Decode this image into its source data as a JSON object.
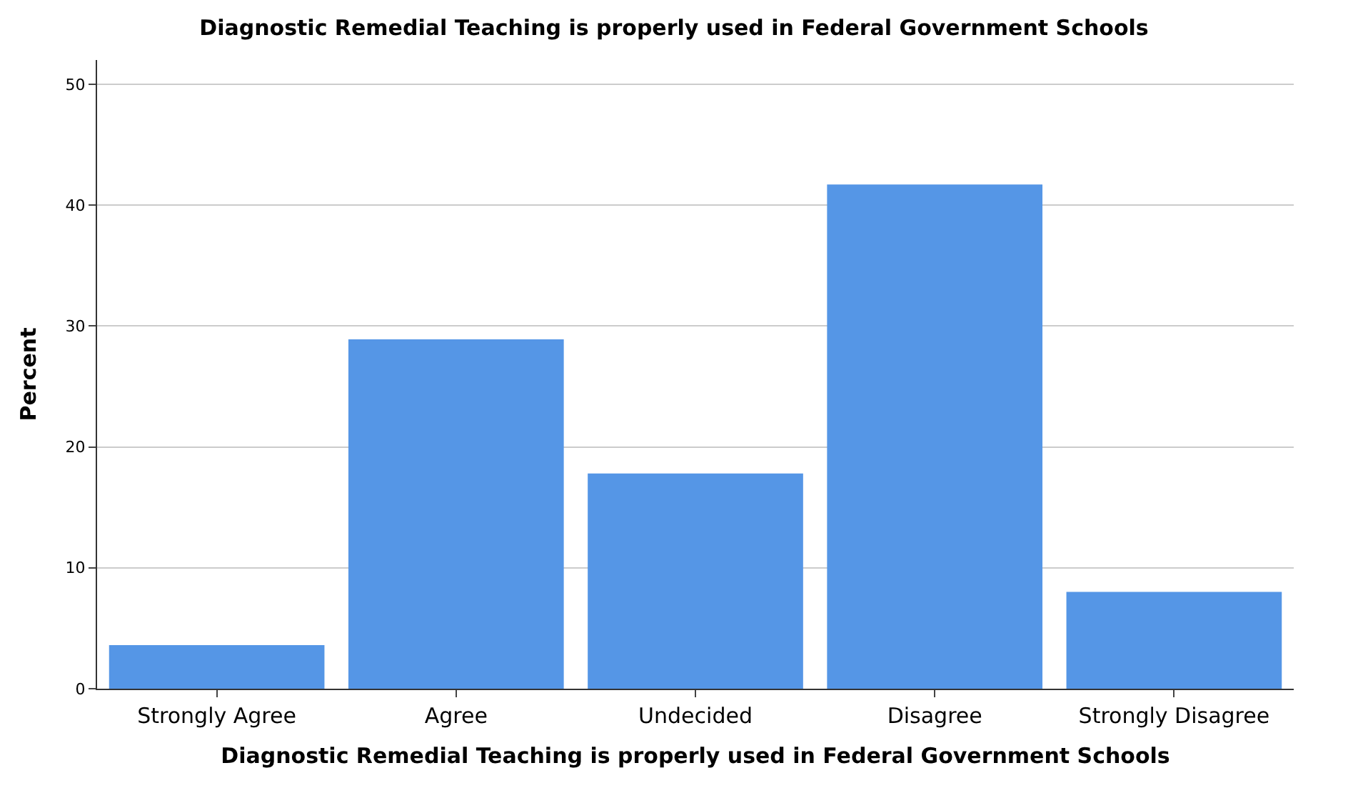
{
  "chart_data": {
    "type": "bar",
    "title": "Diagnostic Remedial Teaching is properly used in Federal Government Schools",
    "xlabel": "Diagnostic Remedial Teaching is properly used in Federal Government Schools",
    "ylabel": "Percent",
    "categories": [
      "Strongly Agree",
      "Agree",
      "Undecided",
      "Disagree",
      "Strongly Disagree"
    ],
    "values": [
      3.6,
      28.9,
      17.8,
      41.7,
      8.0
    ],
    "color": "#5596e6",
    "ylim": [
      0,
      52
    ],
    "yticks": [
      0,
      10,
      20,
      30,
      40,
      50
    ],
    "grid": "y",
    "legend": false
  }
}
